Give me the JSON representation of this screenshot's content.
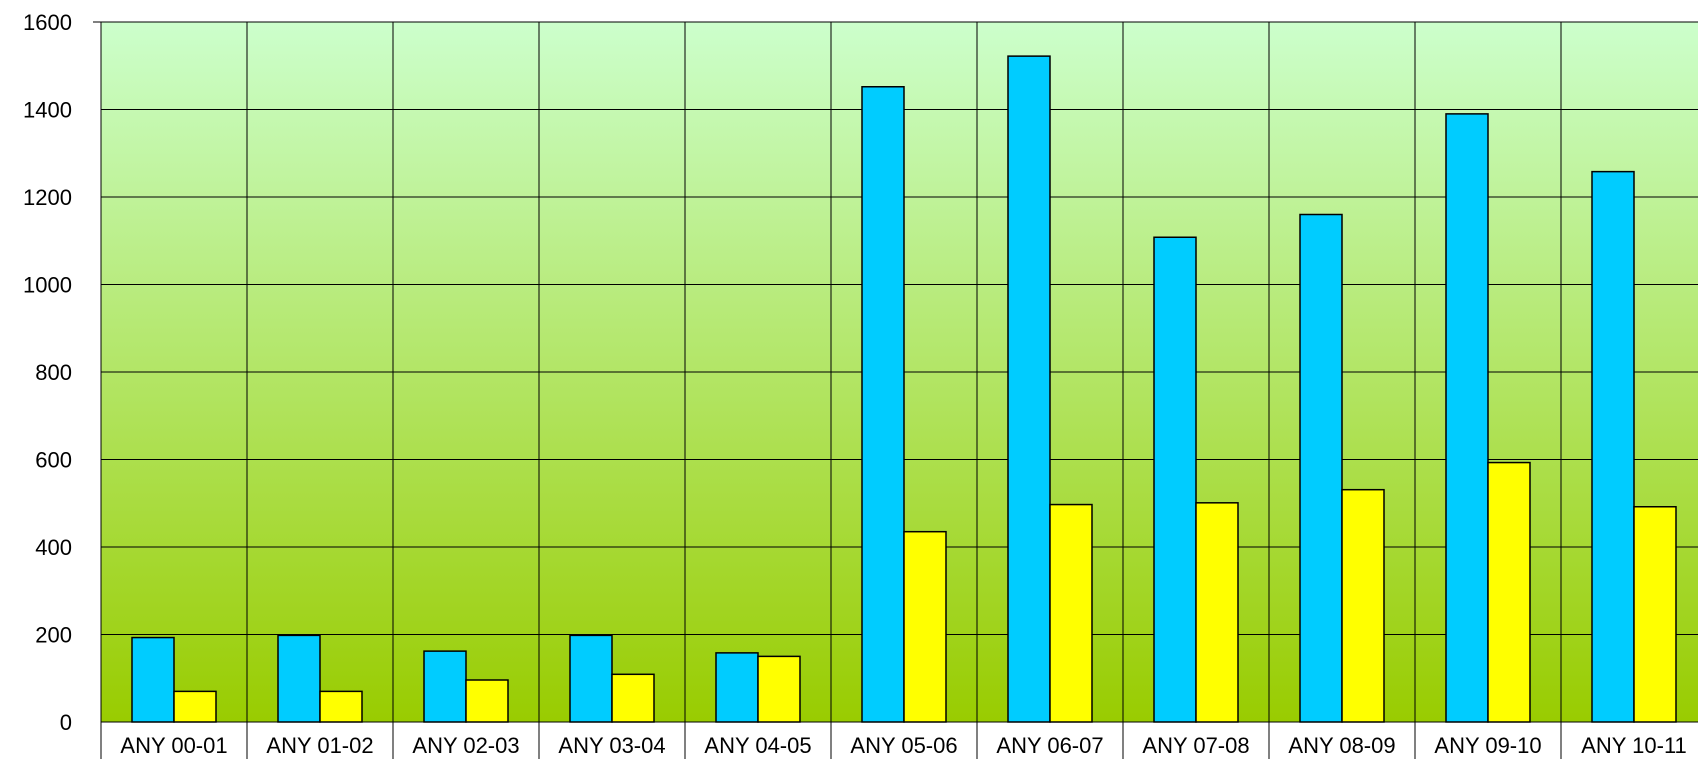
{
  "chart_data": {
    "type": "bar",
    "categories": [
      "ANY 00-01",
      "ANY 01-02",
      "ANY 02-03",
      "ANY 03-04",
      "ANY 04-05",
      "ANY 05-06",
      "ANY 06-07",
      "ANY 07-08",
      "ANY 08-09",
      "ANY 09-10",
      "ANY 10-11"
    ],
    "series": [
      {
        "color": "#00CCFF",
        "values": [
          193,
          198,
          162,
          198,
          158,
          1452,
          1522,
          1108,
          1160,
          1390,
          1258
        ]
      },
      {
        "color": "#FFFF00",
        "values": [
          70,
          70,
          96,
          109,
          150,
          435,
          497,
          501,
          531,
          593,
          492
        ]
      }
    ],
    "title": "",
    "xlabel": "",
    "ylabel": "",
    "ylim": [
      0,
      1600
    ],
    "yticks": [
      "0",
      "200",
      "400",
      "600",
      "800",
      "1000",
      "1200",
      "1400",
      "1600"
    ],
    "grid": true,
    "legend": "none",
    "background_gradient": {
      "top": "#CCFFCC",
      "bottom": "#99CC00"
    }
  }
}
